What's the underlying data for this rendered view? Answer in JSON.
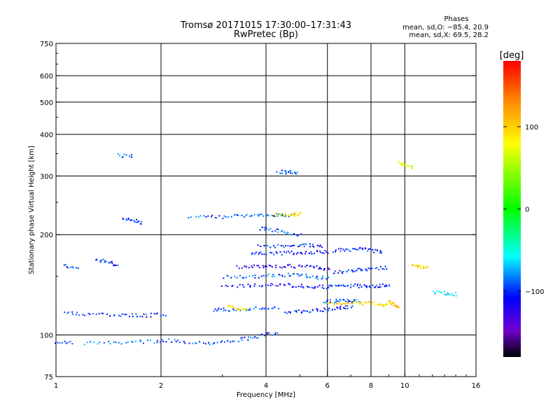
{
  "chart_data": {
    "type": "scatter",
    "title": "Tromsø 20171015 17:30:00–17:31:43",
    "subtitle": "RwPretec (Bp)",
    "xlabel": "Frequency [MHz]",
    "ylabel": "Stationary phase Virtual Height [km]",
    "x_scale": "log",
    "y_scale": "log",
    "xlim": [
      1,
      16
    ],
    "ylim": [
      75,
      750
    ],
    "xticks": [
      1,
      2,
      4,
      6,
      8,
      10,
      16
    ],
    "xtick_labels": [
      "1",
      "2",
      "4",
      "6",
      "8",
      "10",
      "16"
    ],
    "yticks": [
      75,
      100,
      200,
      300,
      400,
      500,
      600,
      750
    ],
    "ytick_labels": [
      "75",
      "100",
      "200",
      "300",
      "400",
      "500",
      "600",
      "750"
    ],
    "x_gridlines": [
      2,
      4,
      6,
      8,
      10
    ],
    "y_gridlines": [
      100,
      200,
      300,
      400,
      500,
      600
    ],
    "grid": true,
    "legend": {
      "title": "Phases",
      "lines": [
        "mean, sd,O: −85.4, 20.9",
        "mean, sd,X: 69.5, 28.2"
      ],
      "placement": "top-right"
    },
    "colorbar": {
      "label": "[deg]",
      "ticks": [
        100,
        0,
        -100
      ],
      "tick_labels": [
        "100",
        "0",
        "−100"
      ],
      "range": [
        -180,
        180
      ],
      "colors_top_to_bottom": [
        "#ff0000",
        "#ff8c00",
        "#ffff00",
        "#00ff00",
        "#00ffff",
        "#0000ff",
        "#7000d0",
        "#000000"
      ]
    },
    "traces": [
      {
        "x": [
          1.0,
          1.1
        ],
        "y": [
          96,
          95
        ],
        "phase": -95
      },
      {
        "x": [
          1.2,
          1.45,
          1.7,
          2.0
        ],
        "y": [
          95,
          95,
          96,
          96
        ],
        "phase": -85
      },
      {
        "x": [
          2.0,
          2.3,
          2.7,
          3.1,
          3.5,
          3.9,
          4.3
        ],
        "y": [
          97,
          96,
          95,
          96,
          98,
          100,
          102
        ],
        "phase": -95
      },
      {
        "x": [
          1.05,
          1.2,
          1.4,
          1.6,
          1.8,
          2.05
        ],
        "y": [
          118,
          116,
          115,
          115,
          115,
          116
        ],
        "phase": -100
      },
      {
        "x": [
          2.8,
          3.1,
          3.5,
          3.9,
          4.3
        ],
        "y": [
          119,
          120,
          120,
          121,
          121
        ],
        "phase": -90
      },
      {
        "x": [
          3.1,
          3.3,
          3.5
        ],
        "y": [
          122,
          121,
          120
        ],
        "phase": 110
      },
      {
        "x": [
          4.5,
          5.0,
          5.5,
          6.0,
          6.5,
          7.0
        ],
        "y": [
          118,
          118,
          119,
          120,
          121,
          122
        ],
        "phase": -100
      },
      {
        "x": [
          6.0,
          6.5,
          7.0,
          7.5,
          8.0,
          8.5,
          9.0
        ],
        "y": [
          124,
          125,
          126,
          125,
          125,
          124,
          124
        ],
        "phase": 110
      },
      {
        "x": [
          5.8,
          6.3,
          6.8,
          7.3
        ],
        "y": [
          126,
          127,
          127,
          128
        ],
        "phase": -90
      },
      {
        "x": [
          3.0,
          3.5,
          4.0,
          4.5,
          5.0,
          5.5,
          6.0
        ],
        "y": [
          140,
          141,
          142,
          142,
          141,
          140,
          140
        ],
        "phase": -110
      },
      {
        "x": [
          6.0,
          6.6,
          7.2,
          7.8,
          8.4,
          9.0
        ],
        "y": [
          141,
          141,
          141,
          141,
          141,
          141
        ],
        "phase": -100
      },
      {
        "x": [
          3.0,
          3.5,
          4.0,
          4.5,
          5.0,
          5.5,
          6.0
        ],
        "y": [
          150,
          150,
          151,
          152,
          152,
          150,
          149
        ],
        "phase": -90
      },
      {
        "x": [
          3.3,
          3.7,
          4.1,
          4.6,
          5.1,
          5.6,
          6.1
        ],
        "y": [
          160,
          161,
          161,
          162,
          161,
          160,
          158
        ],
        "phase": -120
      },
      {
        "x": [
          6.2,
          6.8,
          7.4,
          8.0,
          8.8
        ],
        "y": [
          155,
          156,
          158,
          159,
          160
        ],
        "phase": -100
      },
      {
        "x": [
          3.6,
          4.0,
          4.5,
          5.0,
          5.5,
          6.0
        ],
        "y": [
          176,
          176,
          177,
          177,
          178,
          178
        ],
        "phase": -110
      },
      {
        "x": [
          3.8,
          4.3,
          4.8,
          5.3,
          5.8
        ],
        "y": [
          185,
          186,
          187,
          187,
          186
        ],
        "phase": -100
      },
      {
        "x": [
          6.2,
          6.8,
          7.4,
          8.0,
          8.6
        ],
        "y": [
          180,
          181,
          182,
          180,
          178
        ],
        "phase": -100
      },
      {
        "x": [
          3.8,
          4.2,
          4.6,
          5.0
        ],
        "y": [
          210,
          207,
          204,
          200
        ],
        "phase": -90
      },
      {
        "x": [
          2.4,
          2.8,
          3.2,
          3.6,
          4.0,
          4.4,
          4.8
        ],
        "y": [
          227,
          227,
          228,
          229,
          229,
          230,
          230
        ],
        "phase": -90
      },
      {
        "x": [
          4.2,
          4.5,
          4.8,
          5.0
        ],
        "y": [
          230,
          231,
          231,
          232
        ],
        "phase": 95
      },
      {
        "x": [
          1.55,
          1.65,
          1.75
        ],
        "y": [
          226,
          222,
          218
        ],
        "phase": -100
      },
      {
        "x": [
          1.3,
          1.4,
          1.5
        ],
        "y": [
          170,
          166,
          162
        ],
        "phase": -100
      },
      {
        "x": [
          1.05,
          1.15
        ],
        "y": [
          163,
          159
        ],
        "phase": -90
      },
      {
        "x": [
          10.5,
          11.0,
          11.6
        ],
        "y": [
          163,
          161,
          160
        ],
        "phase": 110
      },
      {
        "x": [
          9.0,
          9.3,
          9.6
        ],
        "y": [
          126,
          124,
          122
        ],
        "phase": 120
      },
      {
        "x": [
          12.0,
          13.0,
          14.0
        ],
        "y": [
          135,
          134,
          133
        ],
        "phase": -60
      },
      {
        "x": [
          4.3,
          4.6,
          4.9
        ],
        "y": [
          310,
          309,
          308
        ],
        "phase": -90
      },
      {
        "x": [
          1.5,
          1.65
        ],
        "y": [
          348,
          345
        ],
        "phase": -90
      },
      {
        "x": [
          9.6,
          10.0,
          10.5
        ],
        "y": [
          330,
          325,
          320
        ],
        "phase": 90
      }
    ]
  }
}
